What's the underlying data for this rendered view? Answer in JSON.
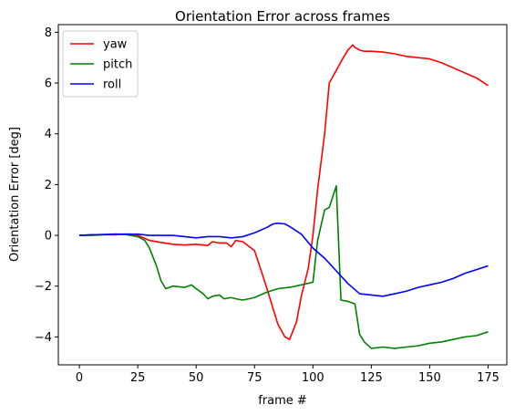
{
  "chart_data": {
    "type": "line",
    "title": "Orientation Error across frames",
    "xlabel": "frame #",
    "ylabel": "Orientation Error [deg]",
    "xlim": [
      -9,
      183
    ],
    "ylim": [
      -5.1,
      8.3
    ],
    "xticks": [
      "0",
      "25",
      "50",
      "75",
      "100",
      "125",
      "150",
      "175"
    ],
    "yticks": [
      "−4",
      "−2",
      "0",
      "2",
      "4",
      "6",
      "8"
    ],
    "grid": false,
    "legend_position": "top-left",
    "series": [
      {
        "name": "yaw",
        "color": "#ff0000",
        "x": [
          0,
          5,
          10,
          15,
          20,
          25,
          30,
          35,
          40,
          45,
          50,
          55,
          57,
          60,
          63,
          65,
          67,
          70,
          75,
          80,
          85,
          88,
          90,
          93,
          95,
          98,
          100,
          102,
          105,
          107,
          110,
          113,
          115,
          117,
          118,
          120,
          122,
          125,
          130,
          135,
          140,
          145,
          150,
          155,
          160,
          165,
          170,
          175
        ],
        "y": [
          0,
          0.02,
          0.03,
          0.02,
          0.05,
          0,
          -0.2,
          -0.28,
          -0.35,
          -0.38,
          -0.35,
          -0.4,
          -0.25,
          -0.3,
          -0.3,
          -0.45,
          -0.2,
          -0.25,
          -0.6,
          -2.0,
          -3.5,
          -4.0,
          -4.1,
          -3.4,
          -2.4,
          -1.3,
          0.0,
          1.8,
          4.0,
          6.0,
          6.5,
          7.0,
          7.3,
          7.5,
          7.4,
          7.3,
          7.25,
          7.25,
          7.22,
          7.15,
          7.05,
          7.0,
          6.95,
          6.8,
          6.6,
          6.4,
          6.2,
          5.9
        ]
      },
      {
        "name": "pitch",
        "color": "#008000",
        "x": [
          0,
          5,
          10,
          15,
          20,
          25,
          28,
          30,
          33,
          35,
          37,
          40,
          45,
          48,
          50,
          53,
          55,
          57,
          60,
          62,
          65,
          67,
          70,
          75,
          80,
          85,
          90,
          95,
          100,
          102,
          105,
          107,
          110,
          112,
          115,
          118,
          120,
          122,
          125,
          130,
          135,
          140,
          145,
          150,
          155,
          160,
          165,
          170,
          175
        ],
        "y": [
          0,
          0,
          0.02,
          0.05,
          0.03,
          -0.05,
          -0.2,
          -0.5,
          -1.2,
          -1.8,
          -2.1,
          -2.0,
          -2.05,
          -1.95,
          -2.1,
          -2.3,
          -2.5,
          -2.4,
          -2.35,
          -2.5,
          -2.45,
          -2.5,
          -2.55,
          -2.45,
          -2.25,
          -2.1,
          -2.05,
          -1.95,
          -1.85,
          -0.2,
          1.0,
          1.1,
          1.95,
          -2.55,
          -2.6,
          -2.7,
          -3.9,
          -4.2,
          -4.45,
          -4.4,
          -4.45,
          -4.4,
          -4.35,
          -4.25,
          -4.2,
          -4.1,
          -4.0,
          -3.95,
          -3.8
        ]
      },
      {
        "name": "roll",
        "color": "#0000ff",
        "x": [
          0,
          5,
          10,
          15,
          20,
          25,
          30,
          35,
          40,
          45,
          50,
          55,
          60,
          65,
          70,
          75,
          80,
          83,
          85,
          88,
          90,
          95,
          100,
          105,
          110,
          115,
          120,
          125,
          130,
          135,
          140,
          145,
          150,
          155,
          160,
          165,
          170,
          175
        ],
        "y": [
          0,
          0.02,
          0.03,
          0.05,
          0.05,
          0.05,
          0.0,
          0.0,
          0.0,
          -0.05,
          -0.1,
          -0.05,
          -0.05,
          -0.1,
          -0.05,
          0.1,
          0.3,
          0.45,
          0.48,
          0.45,
          0.35,
          0.05,
          -0.5,
          -0.9,
          -1.4,
          -1.9,
          -2.3,
          -2.35,
          -2.4,
          -2.3,
          -2.2,
          -2.05,
          -1.95,
          -1.85,
          -1.7,
          -1.5,
          -1.35,
          -1.2
        ]
      }
    ]
  }
}
